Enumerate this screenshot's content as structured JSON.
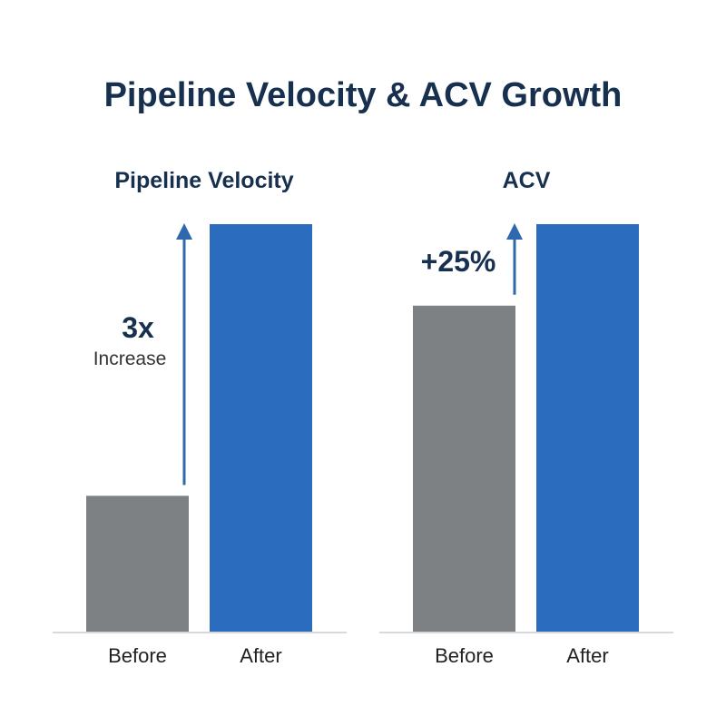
{
  "title": "Pipeline Velocity & ACV Growth",
  "colors": {
    "title": "#17304f",
    "before": "#7d8184",
    "after": "#2b6cbf",
    "arrow": "#2f68ad",
    "axis": "#d6d9dc",
    "label": "#222222"
  },
  "chart_data": [
    {
      "type": "bar",
      "title": "Pipeline Velocity",
      "categories": [
        "Before",
        "After"
      ],
      "values": [
        1,
        3
      ],
      "ylim": [
        0,
        3
      ],
      "annotation": {
        "value": "3x",
        "label": "Increase"
      },
      "legend": "none",
      "grid": false
    },
    {
      "type": "bar",
      "title": "ACV",
      "categories": [
        "Before",
        "After"
      ],
      "values": [
        1,
        1.25
      ],
      "ylim": [
        0,
        1.25
      ],
      "annotation": {
        "value": "+25%",
        "label": ""
      },
      "legend": "none",
      "grid": false
    }
  ]
}
